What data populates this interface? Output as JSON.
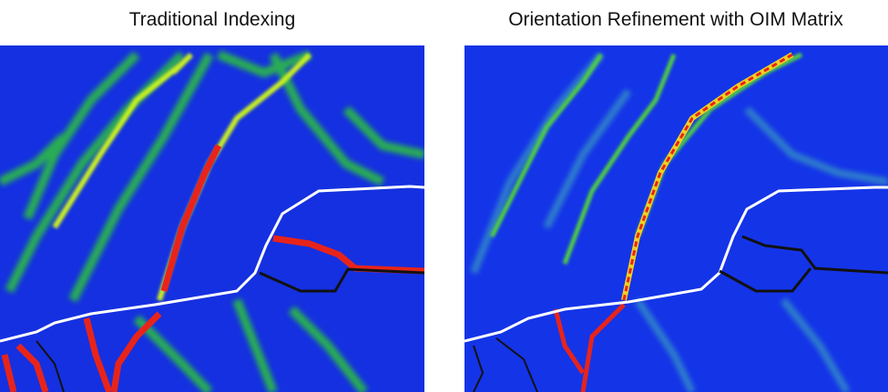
{
  "panels": [
    {
      "title": "Traditional Indexing"
    },
    {
      "title": "Orientation Refinement with OIM Matrix"
    }
  ]
}
